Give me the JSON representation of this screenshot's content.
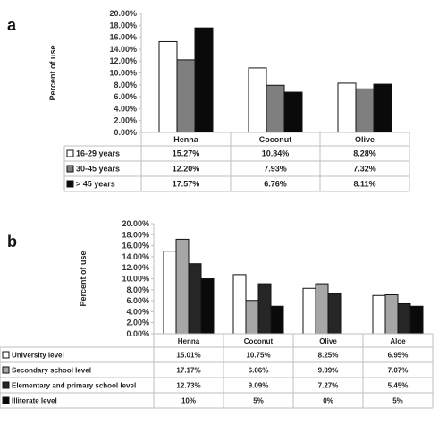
{
  "chart_data": [
    {
      "panel": "a",
      "type": "bar",
      "ylabel": "Percent of use",
      "ylim": [
        0,
        20
      ],
      "ytick_step": 2,
      "ytick_labels": [
        "0.00%",
        "2.00%",
        "4.00%",
        "6.00%",
        "8.00%",
        "10.00%",
        "12.00%",
        "14.00%",
        "16.00%",
        "18.00%",
        "20.00%"
      ],
      "categories": [
        "Henna",
        "Coconut",
        "Olive"
      ],
      "series": [
        {
          "name": "16-29 years",
          "values": [
            15.27,
            10.84,
            8.28
          ],
          "labels": [
            "15.27%",
            "10.84%",
            "8.28%"
          ],
          "color": "#ffffff"
        },
        {
          "name": "30-45 years",
          "values": [
            12.2,
            7.93,
            7.32
          ],
          "labels": [
            "12.20%",
            "7.93%",
            "7.32%"
          ],
          "color": "#7f7f7f"
        },
        {
          "name": "> 45 years",
          "values": [
            17.57,
            6.76,
            8.11
          ],
          "labels": [
            "17.57%",
            "6.76%",
            "8.11%"
          ],
          "color": "#0a0a0a"
        }
      ]
    },
    {
      "panel": "b",
      "type": "bar",
      "ylabel": "Percent of use",
      "ylim": [
        0,
        20
      ],
      "ytick_step": 2,
      "ytick_labels": [
        "0.00%",
        "2.00%",
        "4.00%",
        "6.00%",
        "8.00%",
        "10.00%",
        "12.00%",
        "14.00%",
        "16.00%",
        "18.00%",
        "20.00%"
      ],
      "categories": [
        "Henna",
        "Coconut",
        "Olive",
        "Aloe"
      ],
      "series": [
        {
          "name": "University level",
          "values": [
            15.01,
            10.75,
            8.25,
            6.95
          ],
          "labels": [
            "15.01%",
            "10.75%",
            "8.25%",
            "6.95%"
          ],
          "color": "#ffffff"
        },
        {
          "name": "Secondary school level",
          "values": [
            17.17,
            6.06,
            9.09,
            7.07
          ],
          "labels": [
            "17.17%",
            "6.06%",
            "9.09%",
            "7.07%"
          ],
          "color": "#a6a6a6"
        },
        {
          "name": "Elementary and primary school level",
          "values": [
            12.73,
            9.09,
            7.27,
            5.45
          ],
          "labels": [
            "12.73%",
            "9.09%",
            "7.27%",
            "5.45%"
          ],
          "color": "#262626"
        },
        {
          "name": "Illiterate level",
          "values": [
            10,
            5,
            0,
            5
          ],
          "labels": [
            "10%",
            "5%",
            "0%",
            "5%"
          ],
          "color": "#0a0a0a"
        }
      ]
    }
  ],
  "panel_labels": {
    "a": "a",
    "b": "b"
  }
}
